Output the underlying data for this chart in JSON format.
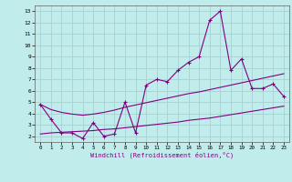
{
  "xlabel": "Windchill (Refroidissement éolien,°C)",
  "bg_color": "#c0ecec",
  "line_color": "#800080",
  "grid_color": "#a8d0d0",
  "x_main": [
    0,
    1,
    2,
    3,
    4,
    5,
    6,
    7,
    8,
    9,
    10,
    11,
    12,
    13,
    14,
    15,
    16,
    17,
    18,
    19,
    20,
    21,
    22,
    23
  ],
  "y_main": [
    4.8,
    3.5,
    2.3,
    2.3,
    1.8,
    3.2,
    2.0,
    2.2,
    5.0,
    2.3,
    6.5,
    7.0,
    6.8,
    7.8,
    8.5,
    9.0,
    12.2,
    13.0,
    7.8,
    8.8,
    6.2,
    6.2,
    6.6,
    5.5
  ],
  "y_upper": [
    4.8,
    4.35,
    4.1,
    3.95,
    3.85,
    3.95,
    4.1,
    4.3,
    4.55,
    4.75,
    4.95,
    5.15,
    5.35,
    5.55,
    5.75,
    5.9,
    6.1,
    6.3,
    6.5,
    6.7,
    6.9,
    7.1,
    7.3,
    7.5
  ],
  "y_lower": [
    2.2,
    2.3,
    2.35,
    2.4,
    2.45,
    2.5,
    2.6,
    2.65,
    2.75,
    2.85,
    2.95,
    3.05,
    3.15,
    3.25,
    3.4,
    3.5,
    3.6,
    3.75,
    3.9,
    4.05,
    4.2,
    4.35,
    4.5,
    4.65
  ],
  "ylim": [
    1.5,
    13.5
  ],
  "xlim": [
    -0.5,
    23.5
  ],
  "yticks": [
    2,
    3,
    4,
    5,
    6,
    7,
    8,
    9,
    10,
    11,
    12,
    13
  ],
  "xticks": [
    0,
    1,
    2,
    3,
    4,
    5,
    6,
    7,
    8,
    9,
    10,
    11,
    12,
    13,
    14,
    15,
    16,
    17,
    18,
    19,
    20,
    21,
    22,
    23
  ],
  "figsize": [
    3.2,
    2.0
  ],
  "dpi": 100
}
